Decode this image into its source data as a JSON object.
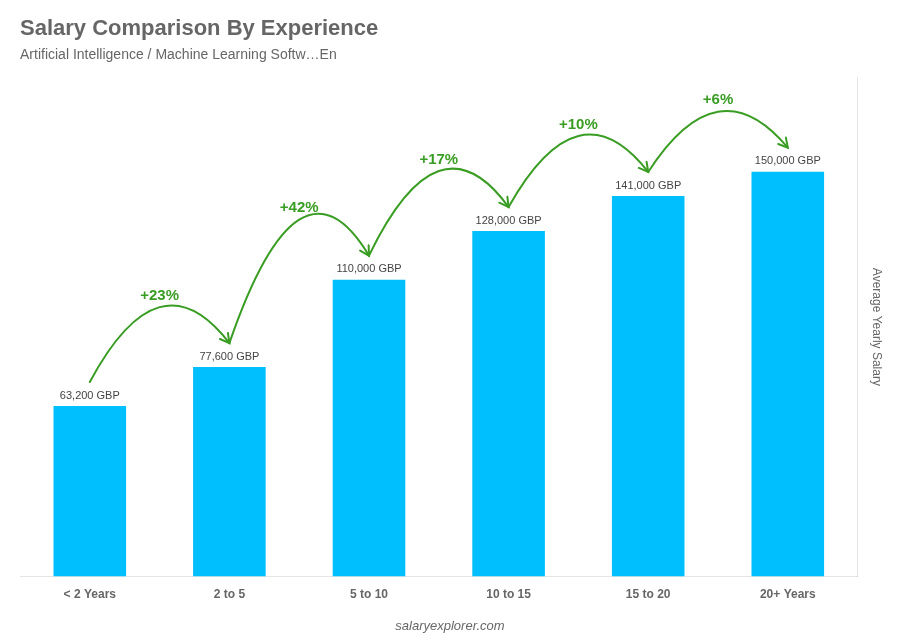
{
  "chart_data": {
    "type": "bar",
    "title": "Salary Comparison By Experience",
    "subtitle": "Artificial Intelligence / Machine Learning Softw…En",
    "ylabel": "Average Yearly Salary",
    "categories": [
      "< 2 Years",
      "2 to 5",
      "5 to 10",
      "10 to 15",
      "15 to 20",
      "20+ Years"
    ],
    "values": [
      63200,
      77600,
      110000,
      128000,
      141000,
      150000
    ],
    "value_labels": [
      "63,200 GBP",
      "77,600 GBP",
      "110,000 GBP",
      "128,000 GBP",
      "141,000 GBP",
      "150,000 GBP"
    ],
    "data_labels": true,
    "color": "#00bfff",
    "ylim": [
      0,
      185000
    ],
    "tick_labels": "x",
    "grid": false,
    "annotations": [
      {
        "text": "+23%",
        "from": "< 2 Years",
        "to": "2 to 5"
      },
      {
        "text": "+42%",
        "from": "2 to 5",
        "to": "5 to 10"
      },
      {
        "text": "+17%",
        "from": "5 to 10",
        "to": "10 to 15"
      },
      {
        "text": "+10%",
        "from": "10 to 15",
        "to": "15 to 20"
      },
      {
        "text": "+6%",
        "from": "15 to 20",
        "to": "20+ Years"
      }
    ],
    "footer": "salaryexplorer.com"
  }
}
